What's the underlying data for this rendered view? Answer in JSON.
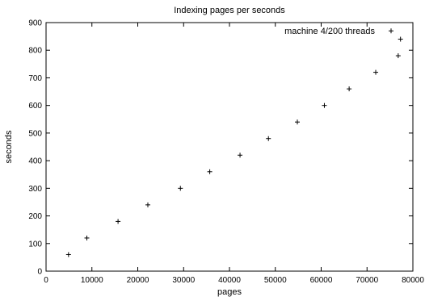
{
  "chart_data": {
    "type": "scatter",
    "title": "Indexing pages per seconds",
    "xlabel": "pages",
    "ylabel": "seconds",
    "xlim": [
      0,
      80000
    ],
    "ylim": [
      0,
      900
    ],
    "xticks": [
      0,
      10000,
      20000,
      30000,
      40000,
      50000,
      60000,
      70000,
      80000
    ],
    "yticks": [
      0,
      100,
      200,
      300,
      400,
      500,
      600,
      700,
      800,
      900
    ],
    "grid": false,
    "legend": "top-right",
    "marker": "+",
    "series": [
      {
        "name": "machine 4/200 threads",
        "points": [
          {
            "x": 4900,
            "y": 60
          },
          {
            "x": 8900,
            "y": 120
          },
          {
            "x": 15700,
            "y": 180
          },
          {
            "x": 22200,
            "y": 240
          },
          {
            "x": 29300,
            "y": 300
          },
          {
            "x": 35700,
            "y": 360
          },
          {
            "x": 42300,
            "y": 420
          },
          {
            "x": 48500,
            "y": 480
          },
          {
            "x": 54800,
            "y": 540
          },
          {
            "x": 60700,
            "y": 600
          },
          {
            "x": 66100,
            "y": 660
          },
          {
            "x": 71900,
            "y": 720
          },
          {
            "x": 76800,
            "y": 780
          },
          {
            "x": 77300,
            "y": 840
          }
        ],
        "legend_marker_y": 870,
        "color": "#000000"
      }
    ]
  }
}
